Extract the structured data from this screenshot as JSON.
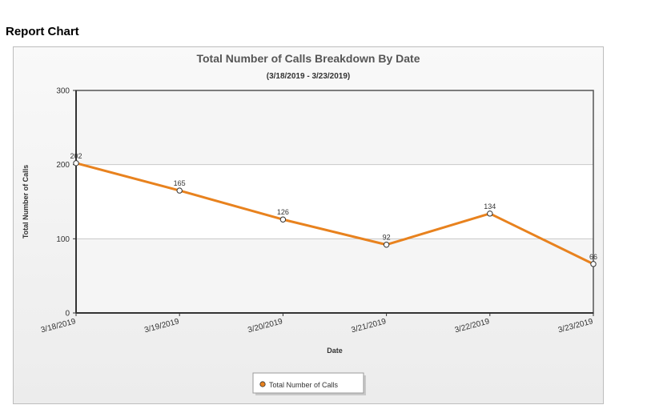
{
  "page": {
    "heading": "Report Chart"
  },
  "colors": {
    "series": "#e8821e",
    "plot_band_light": "#f5f5f5",
    "plot_band_white": "#ffffff",
    "axis": "#555555",
    "grid": "#c8c8c8"
  },
  "chart_data": {
    "type": "line",
    "title": "Total Number of Calls Breakdown By Date",
    "subtitle": "(3/18/2019 - 3/23/2019)",
    "xlabel": "Date",
    "ylabel": "Total Number of Calls",
    "ylim": [
      0,
      300
    ],
    "yticks": [
      0,
      100,
      200,
      300
    ],
    "grid": true,
    "legend_position": "bottom-center",
    "categories": [
      "3/18/2019",
      "3/19/2019",
      "3/20/2019",
      "3/21/2019",
      "3/22/2019",
      "3/23/2019"
    ],
    "series": [
      {
        "name": "Total Number of Calls",
        "values": [
          202,
          165,
          126,
          92,
          134,
          66
        ]
      }
    ]
  }
}
